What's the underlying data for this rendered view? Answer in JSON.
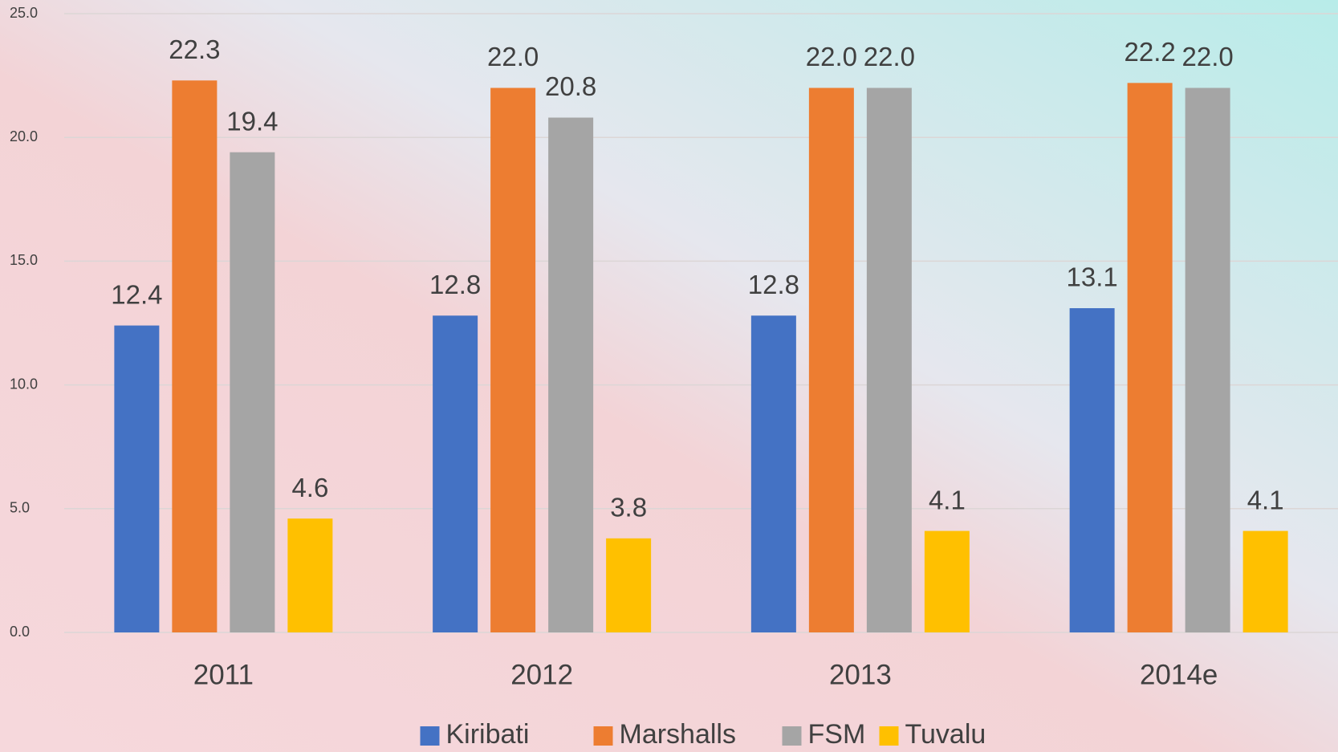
{
  "chart_data": {
    "type": "bar",
    "categories": [
      "2011",
      "2012",
      "2013",
      "2014e"
    ],
    "series": [
      {
        "name": "Kiribati",
        "color": "#4472c4",
        "values": [
          12.4,
          12.8,
          12.8,
          13.1
        ],
        "value_labels": [
          "12.4",
          "12.8",
          "12.8",
          "13.1"
        ]
      },
      {
        "name": "Marshalls",
        "color": "#ed7d31",
        "values": [
          22.3,
          22,
          22,
          22.2
        ],
        "value_labels": [
          "22.3",
          "22.0",
          "22.0",
          "22.2"
        ]
      },
      {
        "name": "FSM",
        "color": "#a5a5a5",
        "values": [
          19.4,
          20.8,
          22,
          22
        ],
        "value_labels": [
          "19.4",
          "20.8",
          "22.0",
          "22.0"
        ]
      },
      {
        "name": "Tuvalu",
        "color": "#ffc000",
        "values": [
          4.6,
          3.8,
          4.1,
          4.1
        ],
        "value_labels": [
          "4.6",
          "3.8",
          "4.1",
          "4.1"
        ]
      }
    ],
    "ylim": [
      0,
      25
    ],
    "yticks": [
      {
        "value": 0,
        "label": "0.0"
      },
      {
        "value": 5,
        "label": "5.0"
      },
      {
        "value": 10,
        "label": "10.0"
      },
      {
        "value": 15,
        "label": "15.0"
      },
      {
        "value": 20,
        "label": "20.0"
      },
      {
        "value": 25,
        "label": "25.0"
      }
    ],
    "grid": true,
    "legend": "bottom"
  }
}
